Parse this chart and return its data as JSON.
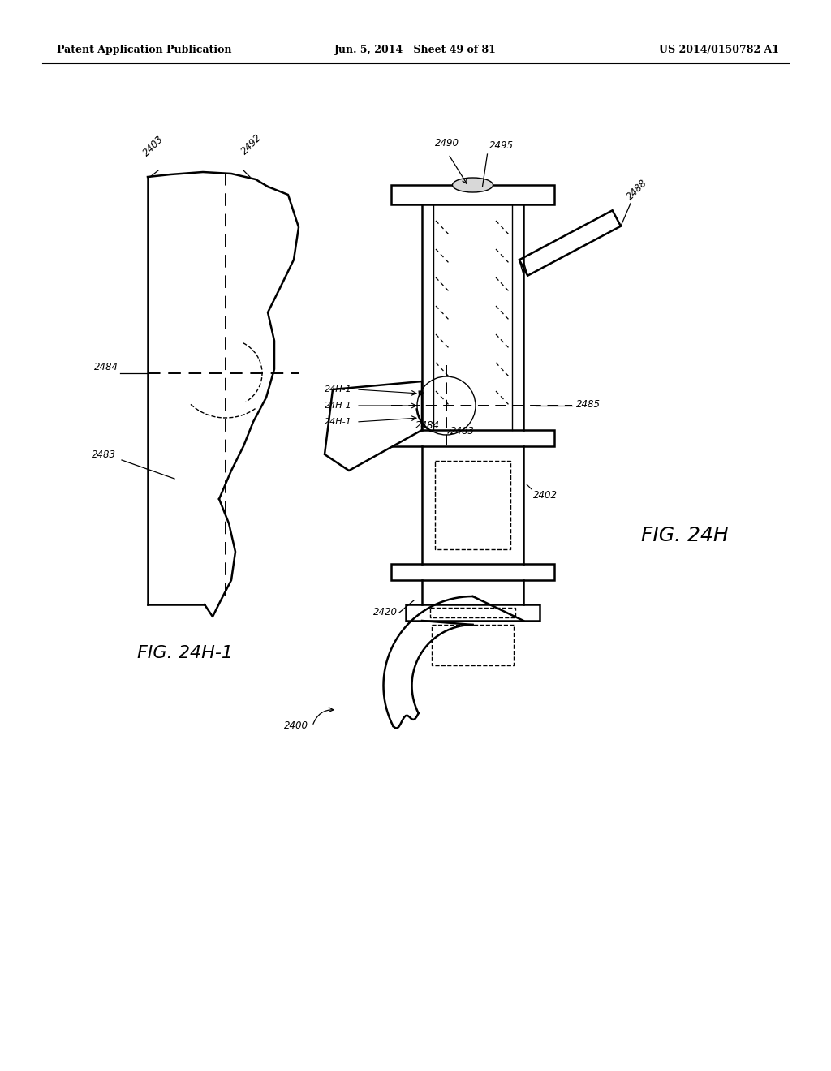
{
  "bg_color": "#ffffff",
  "header_left": "Patent Application Publication",
  "header_mid": "Jun. 5, 2014   Sheet 49 of 81",
  "header_right": "US 2014/0150782 A1"
}
